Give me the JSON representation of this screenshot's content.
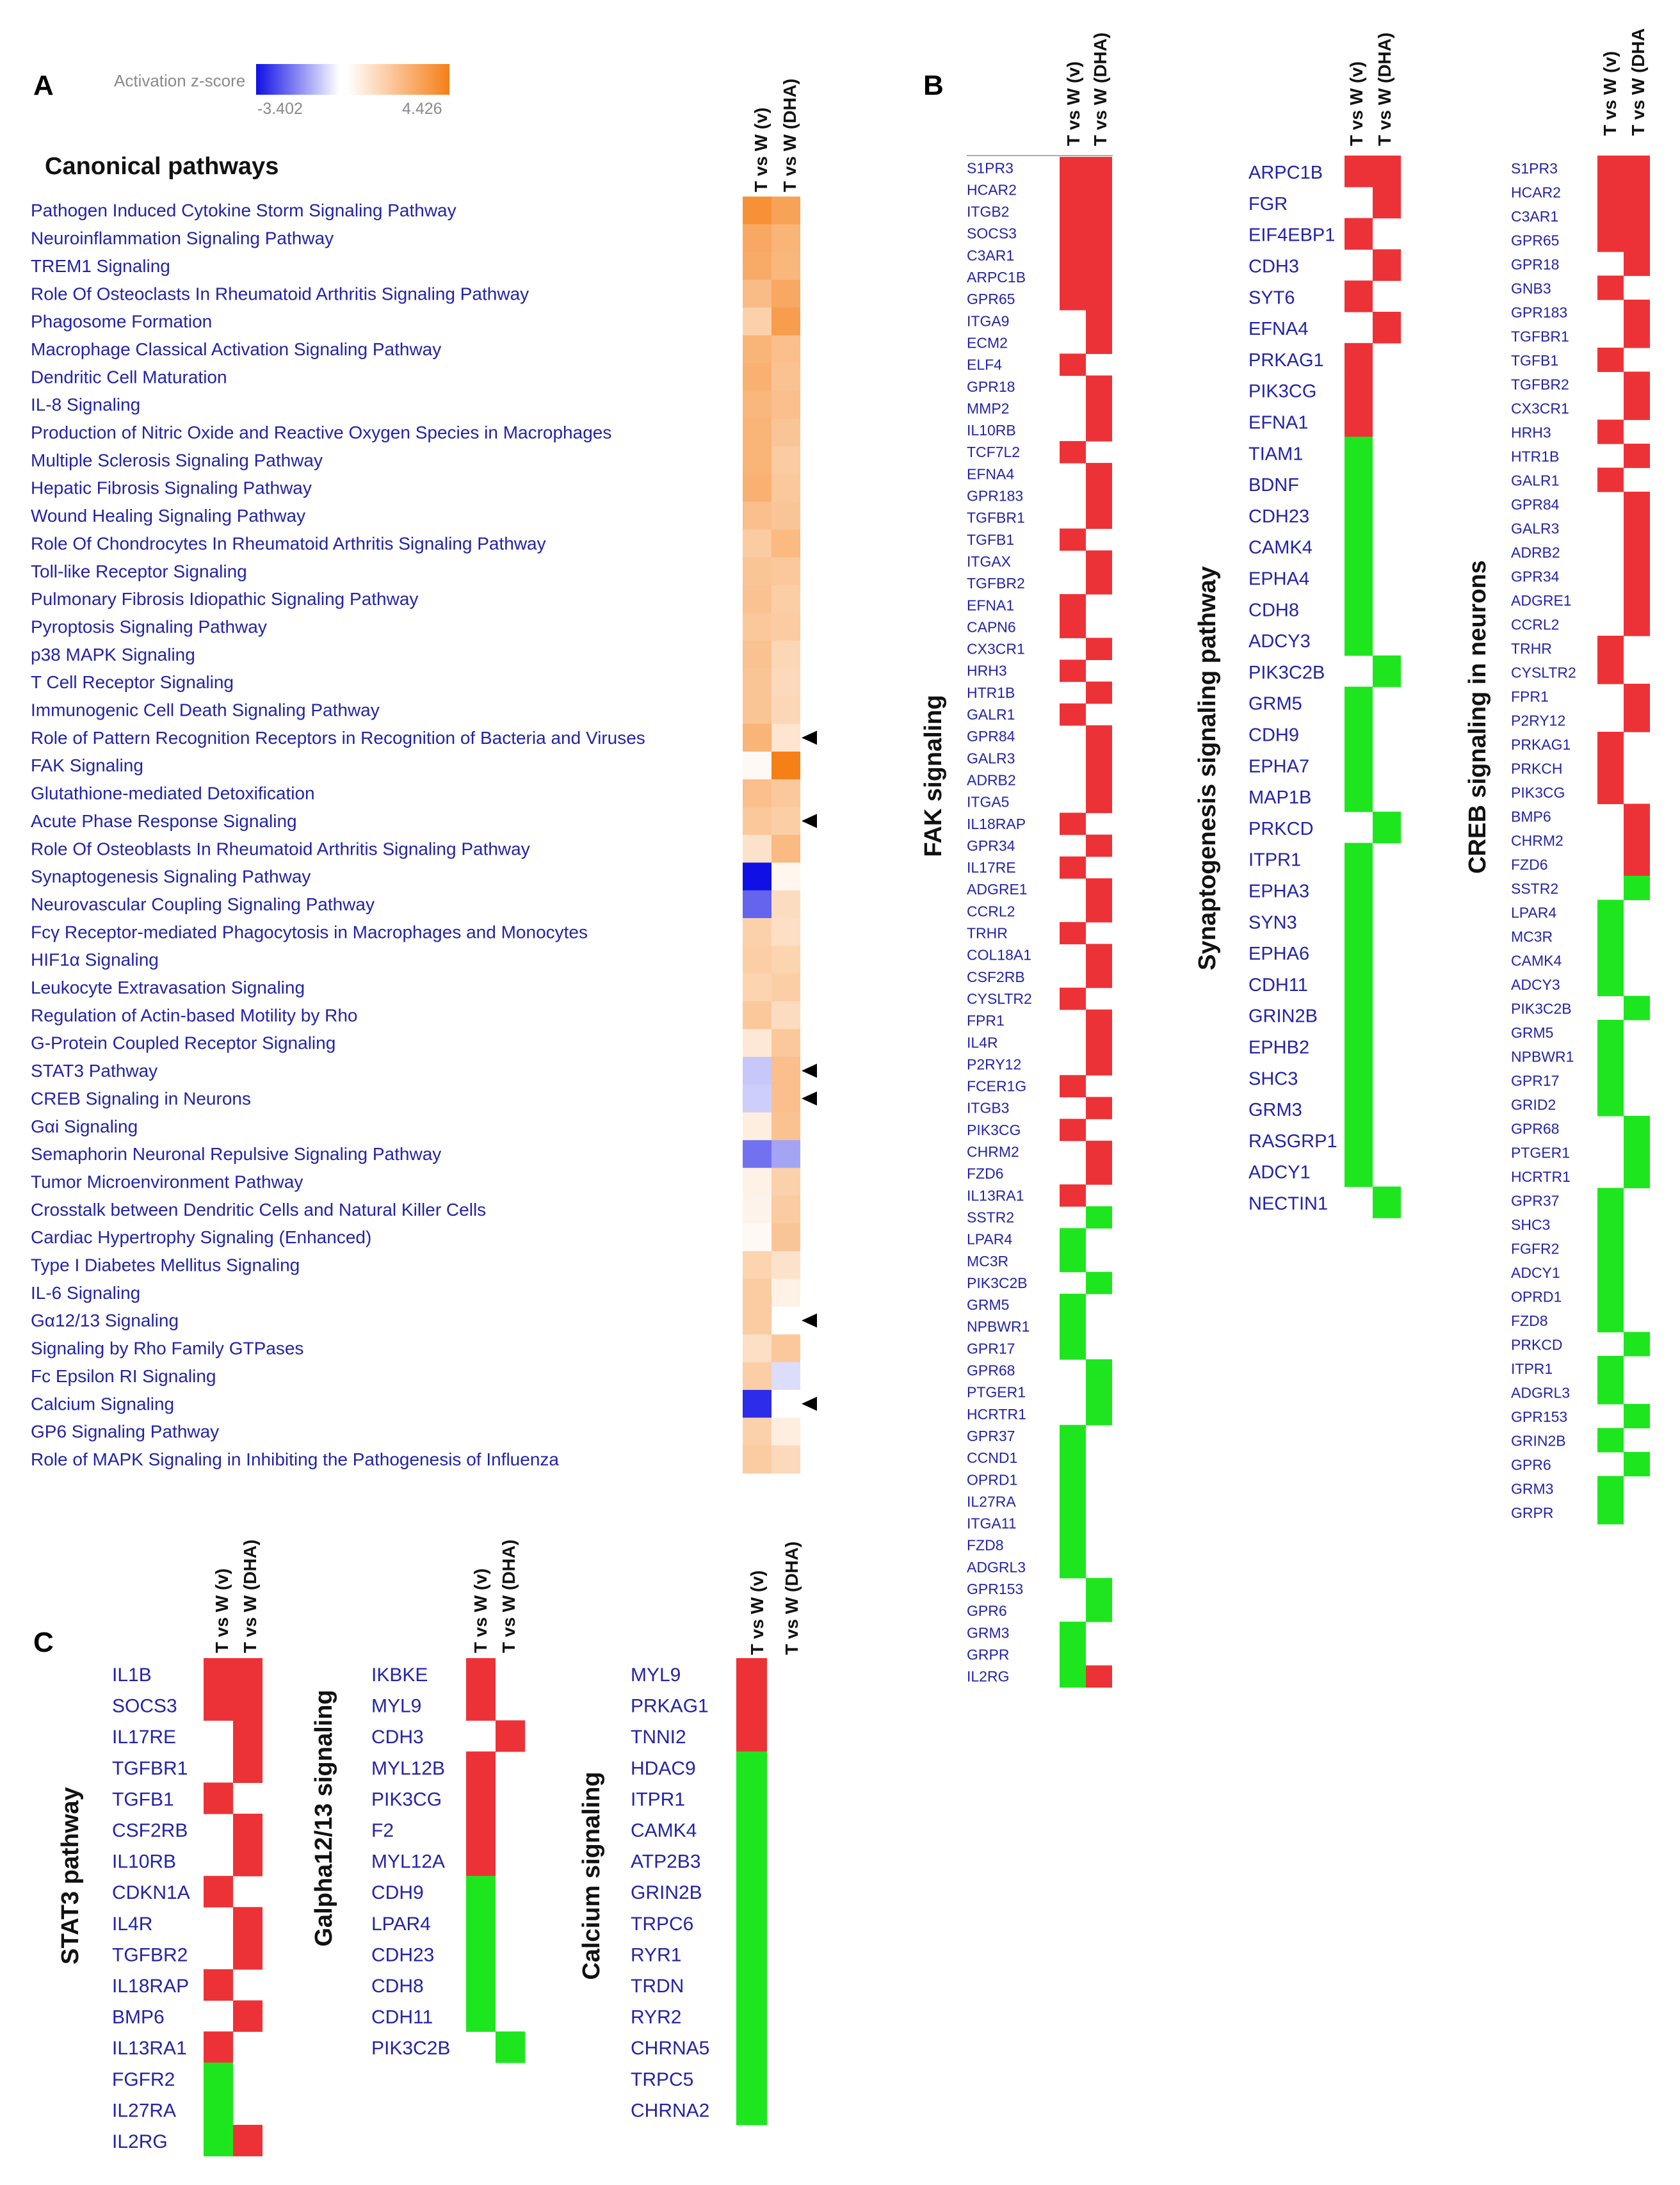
{
  "colors": {
    "up": "#ed3237",
    "down": "#1ee61e",
    "empty": "#ffffff",
    "label": "#2323a8",
    "z_high": "#f57f17",
    "z_low": "#1010e6"
  },
  "columns": [
    "T vs W (v)",
    "T vs W (DHA)"
  ],
  "columns_clipped_B3": [
    "T vs W (v)",
    "T vs W (DHA"
  ],
  "legend": {
    "title": "Activation z-score",
    "min": "-3.402",
    "max": "4.426"
  },
  "panels": {
    "A": {
      "letter": "A",
      "title": "Canonical pathways",
      "markers": [
        19,
        22,
        31,
        32,
        40,
        43
      ],
      "pathways": [
        {
          "name": "Pathogen Induced Cytokine Storm Signaling Pathway",
          "z": [
            3.8,
            3.2
          ]
        },
        {
          "name": "Neuroinflammation Signaling Pathway",
          "z": [
            3.0,
            2.6
          ]
        },
        {
          "name": "TREM1 Signaling",
          "z": [
            2.9,
            2.5
          ]
        },
        {
          "name": "Role Of Osteoclasts In Rheumatoid Arthritis Signaling Pathway",
          "z": [
            2.3,
            3.0
          ]
        },
        {
          "name": "Phagosome Formation",
          "z": [
            1.6,
            3.4
          ]
        },
        {
          "name": "Macrophage Classical Activation Signaling Pathway",
          "z": [
            2.6,
            2.2
          ]
        },
        {
          "name": "Dendritic Cell Maturation",
          "z": [
            2.7,
            2.1
          ]
        },
        {
          "name": "IL-8 Signaling",
          "z": [
            2.5,
            2.2
          ]
        },
        {
          "name": "Production of Nitric Oxide and Reactive Oxygen Species in Macrophages",
          "z": [
            2.6,
            2.0
          ]
        },
        {
          "name": "Multiple Sclerosis Signaling Pathway",
          "z": [
            2.6,
            1.8
          ]
        },
        {
          "name": "Hepatic Fibrosis Signaling Pathway",
          "z": [
            2.7,
            1.9
          ]
        },
        {
          "name": "Wound Healing Signaling Pathway",
          "z": [
            2.2,
            2.0
          ]
        },
        {
          "name": "Role Of Chondrocytes In Rheumatoid Arthritis Signaling Pathway",
          "z": [
            1.8,
            2.4
          ]
        },
        {
          "name": "Toll-like Receptor Signaling",
          "z": [
            2.0,
            1.9
          ]
        },
        {
          "name": "Pulmonary Fibrosis Idiopathic Signaling Pathway",
          "z": [
            2.1,
            1.7
          ]
        },
        {
          "name": "Pyroptosis Signaling Pathway",
          "z": [
            1.9,
            1.8
          ]
        },
        {
          "name": "p38 MAPK Signaling",
          "z": [
            2.1,
            1.4
          ]
        },
        {
          "name": "T Cell Receptor Signaling",
          "z": [
            2.0,
            1.3
          ]
        },
        {
          "name": "Immunogenic Cell Death Signaling Pathway",
          "z": [
            2.0,
            1.4
          ]
        },
        {
          "name": "Role of Pattern Recognition Receptors in Recognition of Bacteria and Viruses",
          "z": [
            2.6,
            0.9
          ]
        },
        {
          "name": "FAK Signaling",
          "z": [
            0.2,
            4.4
          ]
        },
        {
          "name": "Glutathione-mediated Detoxification",
          "z": [
            2.2,
            1.9
          ]
        },
        {
          "name": "Acute Phase Response Signaling",
          "z": [
            1.9,
            1.7
          ]
        },
        {
          "name": "Role Of Osteoblasts In Rheumatoid Arthritis Signaling Pathway",
          "z": [
            1.0,
            2.4
          ]
        },
        {
          "name": "Synaptogenesis Signaling Pathway",
          "z": [
            -3.4,
            0.3
          ]
        },
        {
          "name": "Neurovascular Coupling Signaling Pathway",
          "z": [
            -2.2,
            1.2
          ]
        },
        {
          "name": "Fcγ Receptor-mediated Phagocytosis in Macrophages and Monocytes",
          "z": [
            1.6,
            1.1
          ]
        },
        {
          "name": "HIF1α Signaling",
          "z": [
            1.7,
            1.5
          ]
        },
        {
          "name": "Leukocyte Extravasation Signaling",
          "z": [
            1.5,
            1.7
          ]
        },
        {
          "name": "Regulation of Actin-based Motility by Rho",
          "z": [
            1.9,
            1.2
          ]
        },
        {
          "name": "G-Protein Coupled Receptor Signaling",
          "z": [
            0.8,
            1.9
          ]
        },
        {
          "name": "STAT3 Pathway",
          "z": [
            -0.8,
            2.2
          ]
        },
        {
          "name": "CREB Signaling in Neurons",
          "z": [
            -0.7,
            2.2
          ]
        },
        {
          "name": "Gαi Signaling",
          "z": [
            0.6,
            2.1
          ]
        },
        {
          "name": "Semaphorin Neuronal Repulsive Signaling Pathway",
          "z": [
            -2.0,
            -1.3
          ]
        },
        {
          "name": "Tumor Microenvironment Pathway",
          "z": [
            0.5,
            1.6
          ]
        },
        {
          "name": "Crosstalk between Dendritic Cells and Natural Killer Cells",
          "z": [
            0.4,
            1.8
          ]
        },
        {
          "name": "Cardiac Hypertrophy Signaling (Enhanced)",
          "z": [
            0.2,
            2.0
          ]
        },
        {
          "name": "Type I Diabetes Mellitus Signaling",
          "z": [
            1.5,
            1.0
          ]
        },
        {
          "name": "IL-6 Signaling",
          "z": [
            1.8,
            0.5
          ]
        },
        {
          "name": "Gα12/13 Signaling",
          "z": [
            1.8,
            0.0
          ]
        },
        {
          "name": "Signaling by Rho Family GTPases",
          "z": [
            1.1,
            1.9
          ]
        },
        {
          "name": "Fc Epsilon RI Signaling",
          "z": [
            1.7,
            -0.5
          ]
        },
        {
          "name": "Calcium Signaling",
          "z": [
            -3.0,
            0.0
          ]
        },
        {
          "name": "GP6 Signaling Pathway",
          "z": [
            1.6,
            0.6
          ]
        },
        {
          "name": "Role of MAPK Signaling in Inhibiting the Pathogenesis of Influenza",
          "z": [
            1.8,
            1.3
          ]
        }
      ]
    },
    "B": {
      "letter": "B",
      "heatmaps": [
        {
          "title": "FAK signaling",
          "genes": [
            "S1PR3",
            "HCAR2",
            "ITGB2",
            "SOCS3",
            "C3AR1",
            "ARPC1B",
            "GPR65",
            "ITGA9",
            "ECM2",
            "ELF4",
            "GPR18",
            "MMP2",
            "IL10RB",
            "TCF7L2",
            "EFNA4",
            "GPR183",
            "TGFBR1",
            "TGFB1",
            "ITGAX",
            "TGFBR2",
            "EFNA1",
            "CAPN6",
            "CX3CR1",
            "HRH3",
            "HTR1B",
            "GALR1",
            "GPR84",
            "GALR3",
            "ADRB2",
            "ITGA5",
            "IL18RAP",
            "GPR34",
            "IL17RE",
            "ADGRE1",
            "CCRL2",
            "TRHR",
            "COL18A1",
            "CSF2RB",
            "CYSLTR2",
            "FPR1",
            "IL4R",
            "P2RY12",
            "FCER1G",
            "ITGB3",
            "PIK3CG",
            "CHRM2",
            "FZD6",
            "IL13RA1",
            "SSTR2",
            "LPAR4",
            "MC3R",
            "PIK3C2B",
            "GRM5",
            "NPBWR1",
            "GPR17",
            "GPR68",
            "PTGER1",
            "HCRTR1",
            "GPR37",
            "CCND1",
            "OPRD1",
            "IL27RA",
            "ITGA11",
            "FZD8",
            "ADGRL3",
            "GPR153",
            "GPR6",
            "GRM3",
            "GRPR",
            "IL2RG"
          ],
          "cells": [
            "uu",
            "uu",
            "uu",
            "uu",
            "uu",
            "uu",
            "uu",
            "-u",
            "-u",
            "u-",
            "-u",
            "-u",
            "-u",
            "u-",
            "-u",
            "-u",
            "-u",
            "u-",
            "-u",
            "-u",
            "u-",
            "u-",
            "-u",
            "u-",
            "-u",
            "u-",
            "-u",
            "-u",
            "-u",
            "-u",
            "u-",
            "-u",
            "u-",
            "-u",
            "-u",
            "u-",
            "-u",
            "-u",
            "u-",
            "-u",
            "-u",
            "-u",
            "u-",
            "-u",
            "u-",
            "-u",
            "-u",
            "u-",
            "-d",
            "d-",
            "d-",
            "-d",
            "d-",
            "d-",
            "d-",
            "-d",
            "-d",
            "-d",
            "d-",
            "d-",
            "d-",
            "d-",
            "d-",
            "d-",
            "d-",
            "-d",
            "-d",
            "d-",
            "d-",
            "du"
          ]
        },
        {
          "title": "Synaptogenesis signaling pathway",
          "genes": [
            "ARPC1B",
            "FGR",
            "EIF4EBP1",
            "CDH3",
            "SYT6",
            "EFNA4",
            "PRKAG1",
            "PIK3CG",
            "EFNA1",
            "TIAM1",
            "BDNF",
            "CDH23",
            "CAMK4",
            "EPHA4",
            "CDH8",
            "ADCY3",
            "PIK3C2B",
            "GRM5",
            "CDH9",
            "EPHA7",
            "MAP1B",
            "PRKCD",
            "ITPR1",
            "EPHA3",
            "SYN3",
            "EPHA6",
            "CDH11",
            "GRIN2B",
            "EPHB2",
            "SHC3",
            "GRM3",
            "RASGRP1",
            "ADCY1",
            "NECTIN1"
          ],
          "cells": [
            "uu",
            "-u",
            "u-",
            "-u",
            "u-",
            "-u",
            "u-",
            "u-",
            "u-",
            "d-",
            "d-",
            "d-",
            "d-",
            "d-",
            "d-",
            "d-",
            "-d",
            "d-",
            "d-",
            "d-",
            "d-",
            "-d",
            "d-",
            "d-",
            "d-",
            "d-",
            "d-",
            "d-",
            "d-",
            "d-",
            "d-",
            "d-",
            "d-",
            "-d"
          ]
        },
        {
          "title": "CREB signaling in neurons",
          "genes": [
            "S1PR3",
            "HCAR2",
            "C3AR1",
            "GPR65",
            "GPR18",
            "GNB3",
            "GPR183",
            "TGFBR1",
            "TGFB1",
            "TGFBR2",
            "CX3CR1",
            "HRH3",
            "HTR1B",
            "GALR1",
            "GPR84",
            "GALR3",
            "ADRB2",
            "GPR34",
            "ADGRE1",
            "CCRL2",
            "TRHR",
            "CYSLTR2",
            "FPR1",
            "P2RY12",
            "PRKAG1",
            "PRKCH",
            "PIK3CG",
            "BMP6",
            "CHRM2",
            "FZD6",
            "SSTR2",
            "LPAR4",
            "MC3R",
            "CAMK4",
            "ADCY3",
            "PIK3C2B",
            "GRM5",
            "NPBWR1",
            "GPR17",
            "GRID2",
            "GPR68",
            "PTGER1",
            "HCRTR1",
            "GPR37",
            "SHC3",
            "FGFR2",
            "ADCY1",
            "OPRD1",
            "FZD8",
            "PRKCD",
            "ITPR1",
            "ADGRL3",
            "GPR153",
            "GRIN2B",
            "GPR6",
            "GRM3",
            "GRPR"
          ],
          "cells": [
            "uu",
            "uu",
            "uu",
            "uu",
            "-u",
            "u-",
            "-u",
            "-u",
            "u-",
            "-u",
            "-u",
            "u-",
            "-u",
            "u-",
            "-u",
            "-u",
            "-u",
            "-u",
            "-u",
            "-u",
            "u-",
            "u-",
            "-u",
            "-u",
            "u-",
            "u-",
            "u-",
            "-u",
            "-u",
            "-u",
            "-d",
            "d-",
            "d-",
            "d-",
            "d-",
            "-d",
            "d-",
            "d-",
            "d-",
            "d-",
            "-d",
            "-d",
            "-d",
            "d-",
            "d-",
            "d-",
            "d-",
            "d-",
            "d-",
            "-d",
            "d-",
            "d-",
            "-d",
            "d-",
            "-d",
            "d-",
            "d-"
          ]
        }
      ]
    },
    "C": {
      "letter": "C",
      "heatmaps": [
        {
          "title": "STAT3 pathway",
          "genes": [
            "IL1B",
            "SOCS3",
            "IL17RE",
            "TGFBR1",
            "TGFB1",
            "CSF2RB",
            "IL10RB",
            "CDKN1A",
            "IL4R",
            "TGFBR2",
            "IL18RAP",
            "BMP6",
            "IL13RA1",
            "FGFR2",
            "IL27RA",
            "IL2RG"
          ],
          "cells": [
            "uu",
            "uu",
            "-u",
            "-u",
            "u-",
            "-u",
            "-u",
            "u-",
            "-u",
            "-u",
            "u-",
            "-u",
            "u-",
            "d-",
            "d-",
            "du"
          ]
        },
        {
          "title": "Galpha12/13 signaling",
          "genes": [
            "IKBKE",
            "MYL9",
            "CDH3",
            "MYL12B",
            "PIK3CG",
            "F2",
            "MYL12A",
            "CDH9",
            "LPAR4",
            "CDH23",
            "CDH8",
            "CDH11",
            "PIK3C2B"
          ],
          "cells": [
            "u-",
            "u-",
            "-u",
            "u-",
            "u-",
            "u-",
            "u-",
            "d-",
            "d-",
            "d-",
            "d-",
            "d-",
            "-d"
          ]
        },
        {
          "title": "Calcium signaling",
          "genes": [
            "MYL9",
            "PRKAG1",
            "TNNI2",
            "HDAC9",
            "ITPR1",
            "CAMK4",
            "ATP2B3",
            "GRIN2B",
            "TRPC6",
            "RYR1",
            "TRDN",
            "RYR2",
            "CHRNA5",
            "TRPC5",
            "CHRNA2"
          ],
          "cells": [
            "u-",
            "u-",
            "u-",
            "d-",
            "d-",
            "d-",
            "d-",
            "d-",
            "d-",
            "d-",
            "d-",
            "d-",
            "d-",
            "d-",
            "d-"
          ]
        }
      ]
    }
  }
}
